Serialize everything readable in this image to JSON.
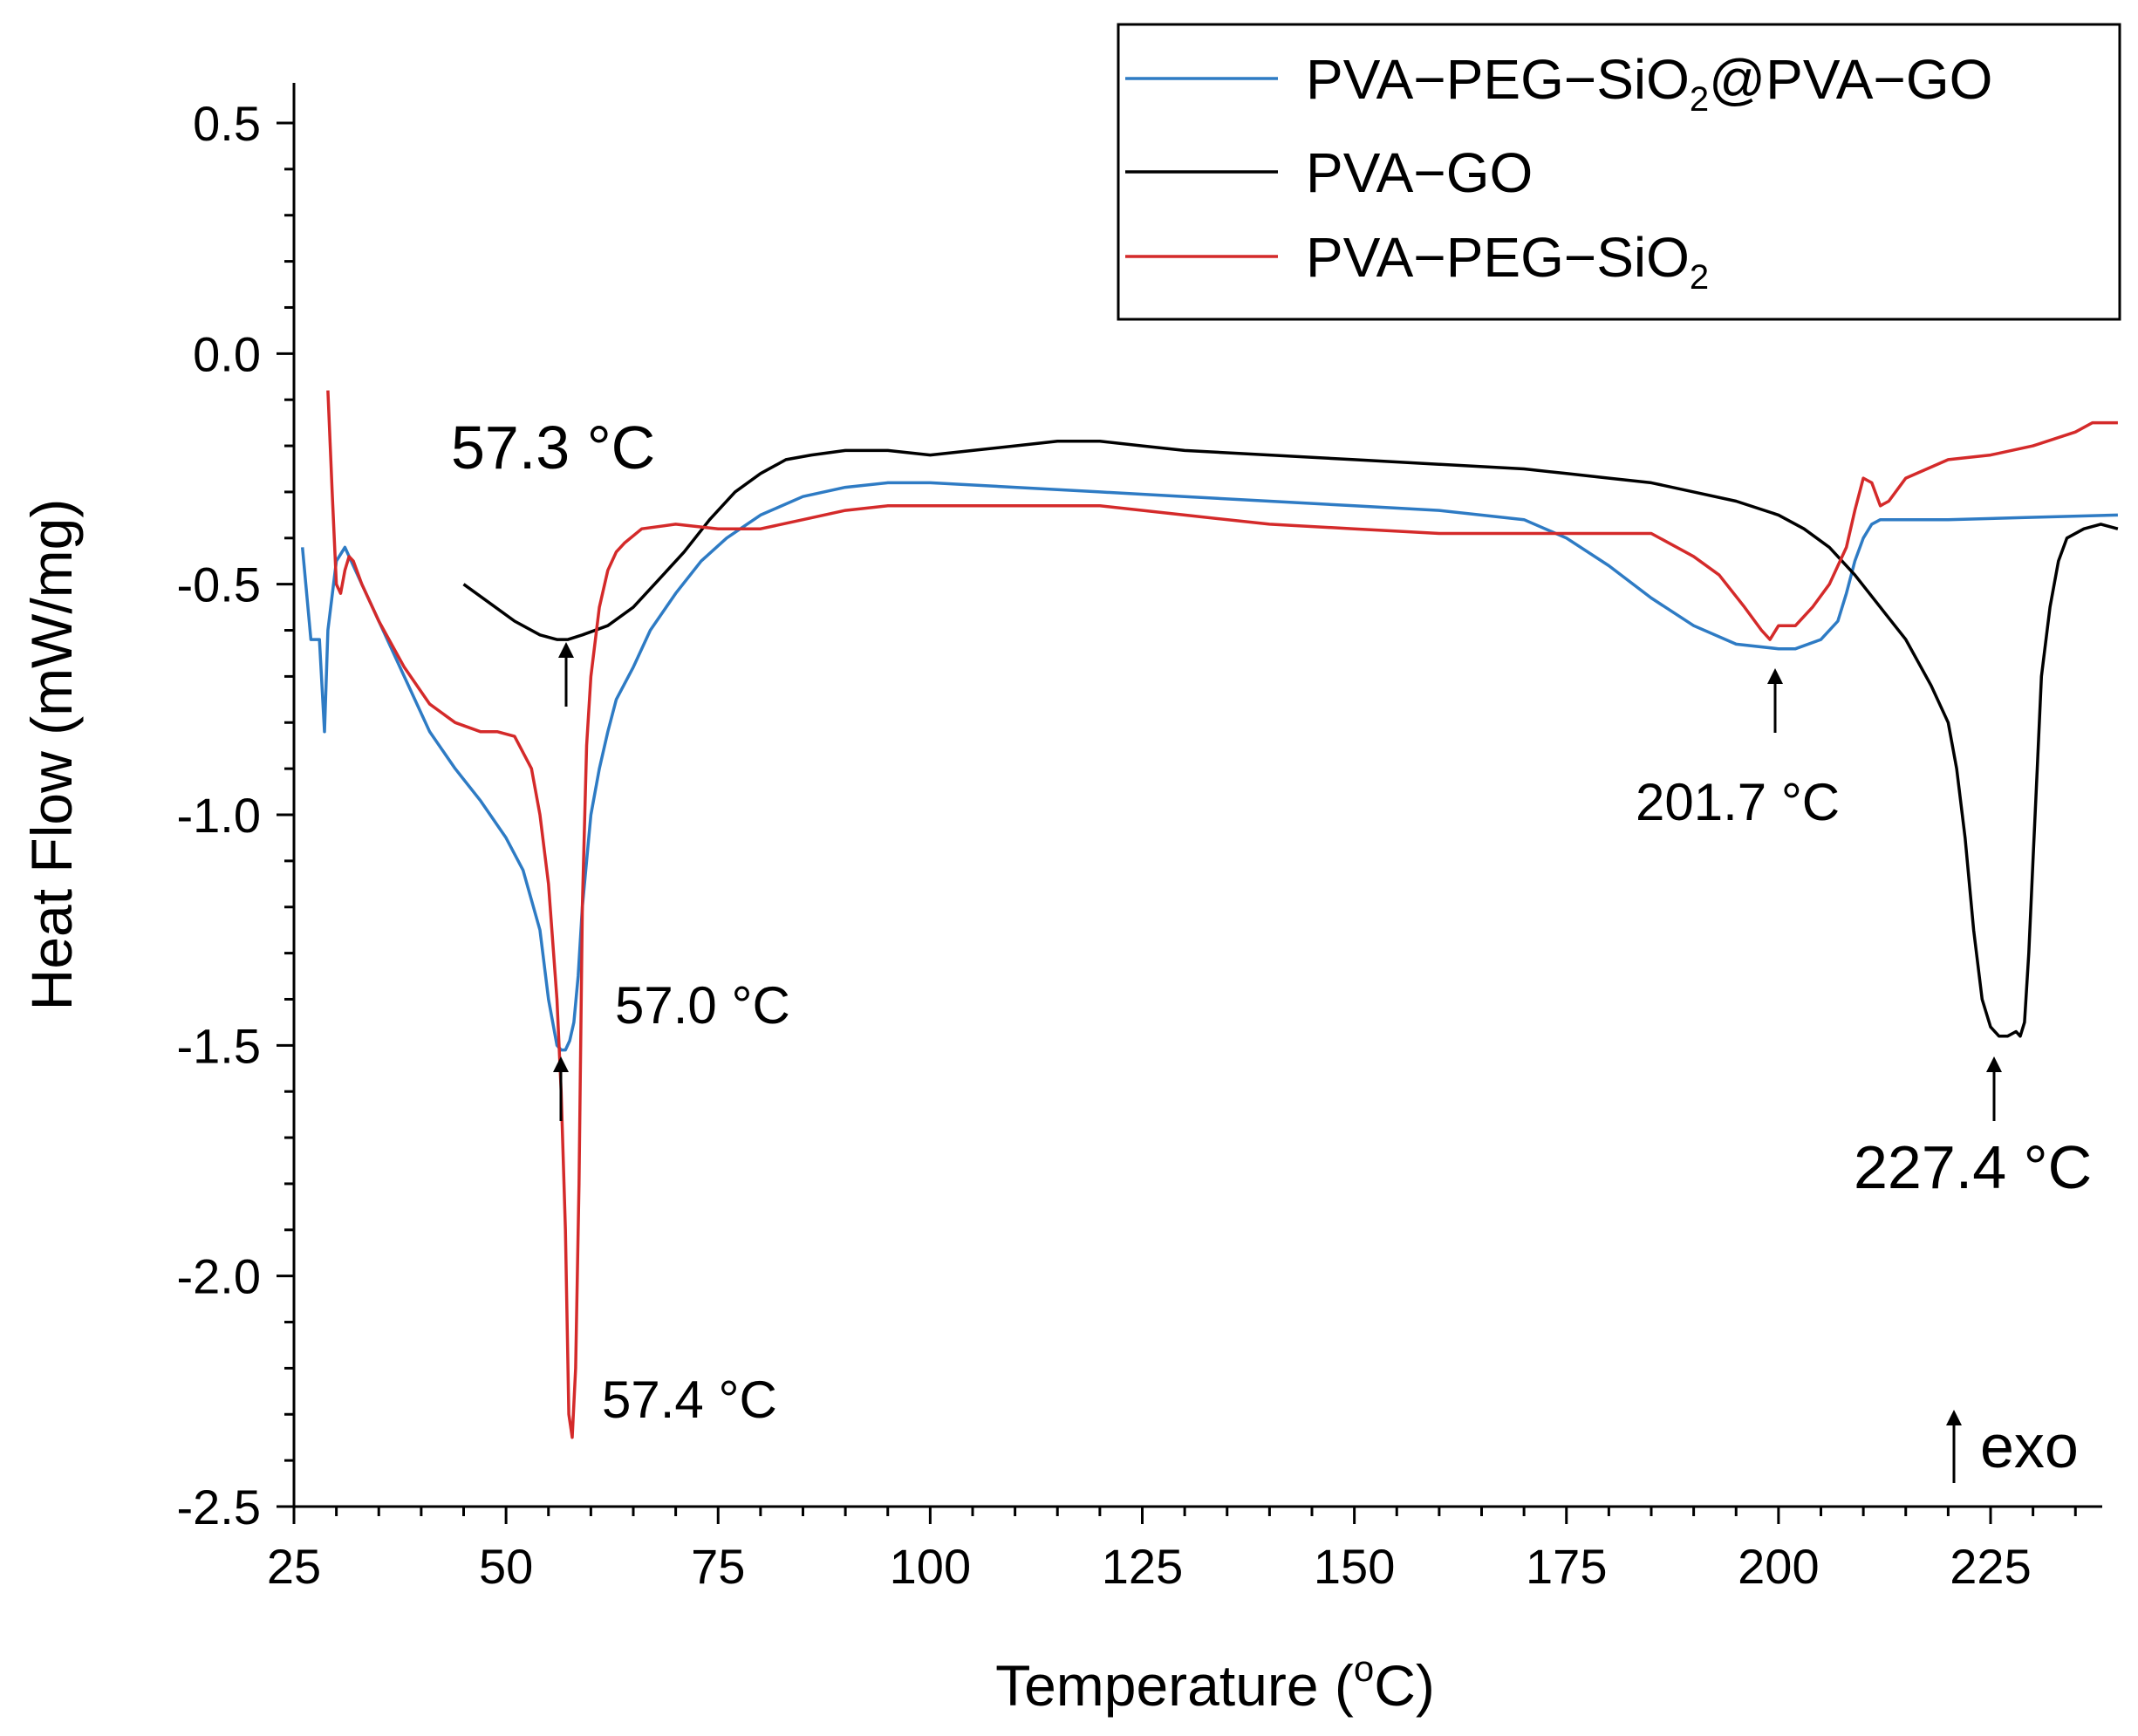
{
  "chart_data": {
    "type": "line",
    "xlabel_main": "Temperature (",
    "xlabel_sup": "o",
    "xlabel_end": "C)",
    "ylabel": "Heat Flow (mW/mg)",
    "xlim": [
      25,
      240
    ],
    "ylim": [
      -2.5,
      0.65
    ],
    "xticks": [
      25,
      50,
      75,
      100,
      125,
      150,
      175,
      200,
      225
    ],
    "xtick_labels": [
      "25",
      "50",
      "75",
      "100",
      "125",
      "150",
      "175",
      "200",
      "225"
    ],
    "yticks": [
      0.5,
      0.0,
      -0.5,
      -1.0,
      -1.5,
      -2.0,
      -2.5
    ],
    "ytick_labels": [
      "0.5",
      "0.0",
      "-0.5",
      "-1.0",
      "-1.5",
      "-2.0",
      "-2.5"
    ],
    "legend_position": "top-right",
    "series": [
      {
        "name": "PVA−PEG−SiO2@PVA−GO",
        "legend_main": "PVA−PEG−SiO",
        "legend_sub": "2",
        "legend_tail": "@PVA−GO",
        "color": "#2e7bc4",
        "x": [
          26,
          27,
          28,
          28.6,
          29,
          30,
          31,
          33,
          35,
          38,
          41,
          44,
          47,
          50,
          52,
          54,
          55,
          56,
          56.5,
          57,
          57.5,
          58,
          58.5,
          59,
          59.5,
          60,
          61,
          62,
          63,
          65,
          67,
          70,
          73,
          76,
          80,
          85,
          90,
          95,
          100,
          110,
          120,
          130,
          140,
          150,
          160,
          170,
          175,
          180,
          185,
          190,
          195,
          200,
          202,
          205,
          207,
          208,
          209,
          210,
          211,
          212,
          215,
          220,
          230,
          240
        ],
        "y": [
          -0.42,
          -0.62,
          -0.62,
          -0.82,
          -0.6,
          -0.45,
          -0.42,
          -0.5,
          -0.58,
          -0.7,
          -0.82,
          -0.9,
          -0.97,
          -1.05,
          -1.12,
          -1.25,
          -1.4,
          -1.5,
          -1.51,
          -1.51,
          -1.49,
          -1.45,
          -1.35,
          -1.2,
          -1.1,
          -1.0,
          -0.9,
          -0.82,
          -0.75,
          -0.68,
          -0.6,
          -0.52,
          -0.45,
          -0.4,
          -0.35,
          -0.31,
          -0.29,
          -0.28,
          -0.28,
          -0.29,
          -0.3,
          -0.31,
          -0.32,
          -0.33,
          -0.34,
          -0.36,
          -0.4,
          -0.46,
          -0.53,
          -0.59,
          -0.63,
          -0.64,
          -0.64,
          -0.62,
          -0.58,
          -0.52,
          -0.45,
          -0.4,
          -0.37,
          -0.36,
          -0.36,
          -0.36,
          -0.355,
          -0.35
        ]
      },
      {
        "name": "PVA−GO",
        "legend_main": "PVA−GO",
        "legend_sub": "",
        "legend_tail": "",
        "color": "#000000",
        "x": [
          45,
          48,
          51,
          54,
          56,
          57.3,
          59,
          62,
          65,
          68,
          71,
          74,
          77,
          80,
          83,
          86,
          90,
          95,
          100,
          105,
          110,
          115,
          120,
          125,
          130,
          140,
          150,
          160,
          170,
          175,
          180,
          185,
          190,
          195,
          200,
          203,
          206,
          209,
          212,
          215,
          218,
          220,
          221,
          222,
          223,
          224,
          225,
          226,
          227,
          228,
          228.5,
          229,
          229.5,
          230,
          230.5,
          231,
          232,
          233,
          234,
          236,
          238,
          240
        ],
        "y": [
          -0.5,
          -0.54,
          -0.58,
          -0.61,
          -0.62,
          -0.62,
          -0.61,
          -0.59,
          -0.55,
          -0.49,
          -0.43,
          -0.36,
          -0.3,
          -0.26,
          -0.23,
          -0.22,
          -0.21,
          -0.21,
          -0.22,
          -0.21,
          -0.2,
          -0.19,
          -0.19,
          -0.2,
          -0.21,
          -0.22,
          -0.23,
          -0.24,
          -0.25,
          -0.26,
          -0.27,
          -0.28,
          -0.3,
          -0.32,
          -0.35,
          -0.38,
          -0.42,
          -0.48,
          -0.55,
          -0.62,
          -0.72,
          -0.8,
          -0.9,
          -1.05,
          -1.25,
          -1.4,
          -1.46,
          -1.48,
          -1.48,
          -1.47,
          -1.48,
          -1.45,
          -1.3,
          -1.1,
          -0.9,
          -0.7,
          -0.55,
          -0.45,
          -0.4,
          -0.38,
          -0.37,
          -0.38
        ]
      },
      {
        "name": "PVA−PEG−SiO2",
        "legend_main": "PVA−PEG−SiO",
        "legend_sub": "2",
        "legend_tail": "",
        "color": "#d42a2a",
        "x": [
          29,
          29.5,
          30,
          30.5,
          31,
          31.5,
          32,
          33,
          35,
          38,
          41,
          44,
          47,
          49,
          51,
          53,
          54,
          55,
          56,
          56.5,
          57,
          57.4,
          57.8,
          58.2,
          58.6,
          59,
          59.5,
          60,
          61,
          62,
          63,
          64,
          66,
          70,
          75,
          80,
          85,
          90,
          95,
          100,
          110,
          120,
          130,
          140,
          150,
          160,
          170,
          180,
          185,
          190,
          193,
          196,
          198,
          199,
          200,
          202,
          204,
          206,
          208,
          209,
          210,
          211,
          212,
          213,
          215,
          220,
          225,
          230,
          235,
          237,
          240
        ],
        "y": [
          -0.08,
          -0.3,
          -0.5,
          -0.52,
          -0.47,
          -0.44,
          -0.45,
          -0.5,
          -0.58,
          -0.68,
          -0.76,
          -0.8,
          -0.82,
          -0.82,
          -0.83,
          -0.9,
          -1.0,
          -1.15,
          -1.4,
          -1.6,
          -1.9,
          -2.3,
          -2.35,
          -2.2,
          -1.8,
          -1.2,
          -0.85,
          -0.7,
          -0.55,
          -0.47,
          -0.43,
          -0.41,
          -0.38,
          -0.37,
          -0.38,
          -0.38,
          -0.36,
          -0.34,
          -0.33,
          -0.33,
          -0.33,
          -0.33,
          -0.35,
          -0.37,
          -0.38,
          -0.39,
          -0.39,
          -0.39,
          -0.39,
          -0.44,
          -0.48,
          -0.55,
          -0.6,
          -0.62,
          -0.59,
          -0.59,
          -0.55,
          -0.5,
          -0.42,
          -0.34,
          -0.27,
          -0.28,
          -0.33,
          -0.32,
          -0.27,
          -0.23,
          -0.22,
          -0.2,
          -0.17,
          -0.15,
          -0.15
        ]
      }
    ],
    "annotations": [
      {
        "text": "57.3 °C",
        "arrow_x": 57.3,
        "arrow_y": -0.63
      },
      {
        "text": "57.0 °C",
        "arrow_x": 57.0,
        "arrow_y": -1.52
      },
      {
        "text": "57.4 °C",
        "arrow_x": 57.4,
        "arrow_y": -2.35
      },
      {
        "text": "201.7 °C",
        "arrow_x": 201.7,
        "arrow_y": -0.66
      },
      {
        "text": "227.4 °C",
        "arrow_x": 227.4,
        "arrow_y": -1.5
      },
      {
        "text": "exo",
        "arrow_x": 222.5,
        "arrow_y": -2.4
      }
    ]
  }
}
